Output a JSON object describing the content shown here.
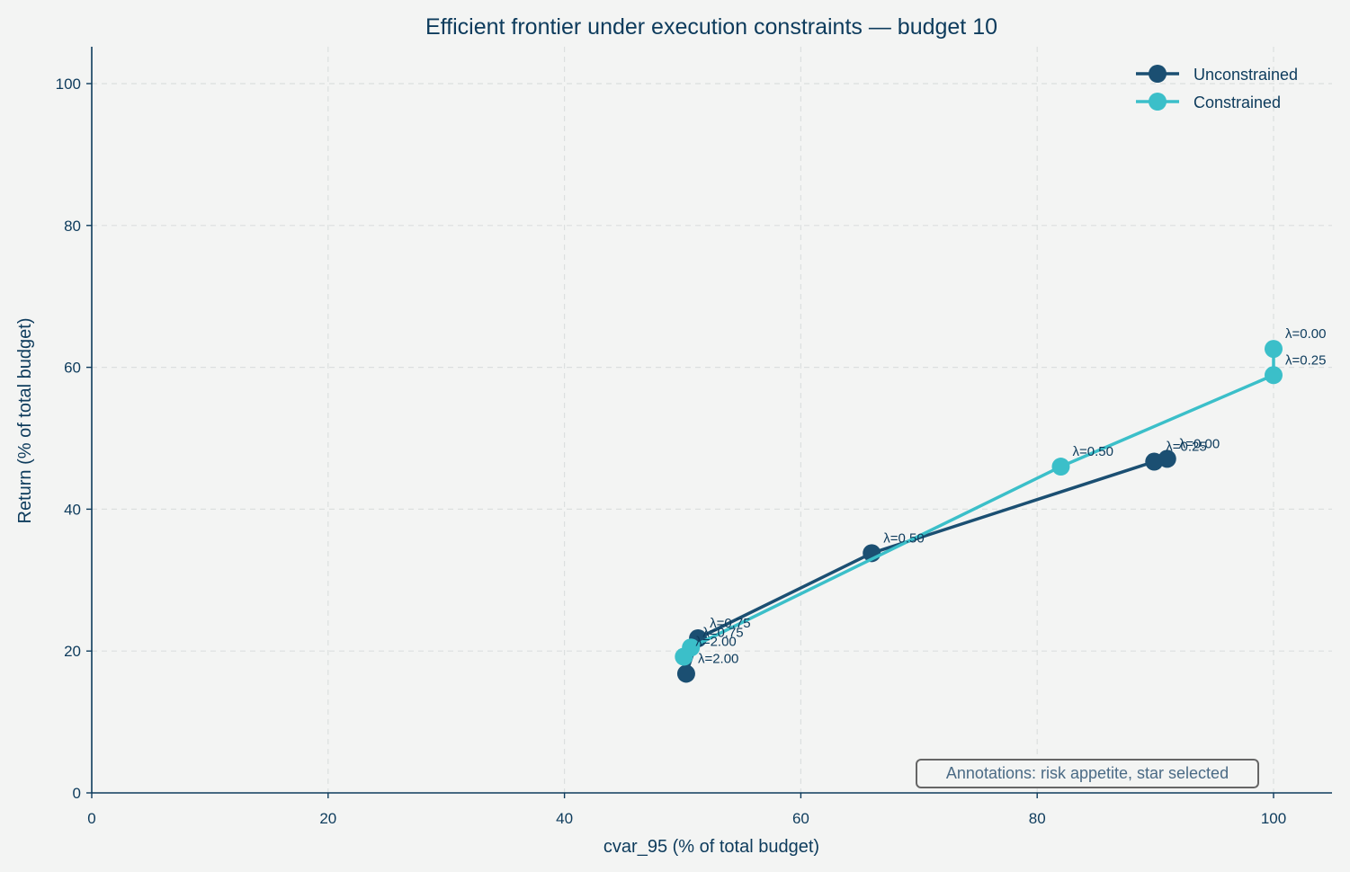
{
  "chart_data": {
    "type": "line",
    "title": "Efficient frontier under execution constraints — budget 10",
    "xlabel": "cvar_95 (% of total budget)",
    "ylabel": "Return (% of total budget)",
    "xlim": [
      0,
      105
    ],
    "ylim": [
      0,
      105
    ],
    "x_ticks": [
      0,
      20,
      40,
      60,
      80,
      100
    ],
    "y_ticks": [
      0,
      20,
      40,
      60,
      80,
      100
    ],
    "grid": true,
    "legend_position": "top-right",
    "annotation": "Annotations: risk appetite, star selected",
    "series": [
      {
        "name": "Unconstrained",
        "color": "#1b4f72",
        "points": [
          {
            "x": 91.0,
            "y": 47.1,
            "label": "λ=0.00"
          },
          {
            "x": 89.9,
            "y": 46.7,
            "label": "λ=0.25"
          },
          {
            "x": 66.0,
            "y": 33.8,
            "label": "λ=0.50"
          },
          {
            "x": 51.3,
            "y": 21.8,
            "label": "λ=0.75"
          },
          {
            "x": 50.3,
            "y": 16.8,
            "label": "λ=2.00"
          }
        ]
      },
      {
        "name": "Constrained",
        "color": "#3bbfc9",
        "points": [
          {
            "x": 100.0,
            "y": 62.6,
            "label": "λ=0.00"
          },
          {
            "x": 100.0,
            "y": 58.9,
            "label": "λ=0.25"
          },
          {
            "x": 82.0,
            "y": 46.0,
            "label": "λ=0.50"
          },
          {
            "x": 50.7,
            "y": 20.5,
            "label": "λ=0.75"
          },
          {
            "x": 50.1,
            "y": 19.2,
            "label": "λ=2.00"
          }
        ]
      }
    ]
  }
}
